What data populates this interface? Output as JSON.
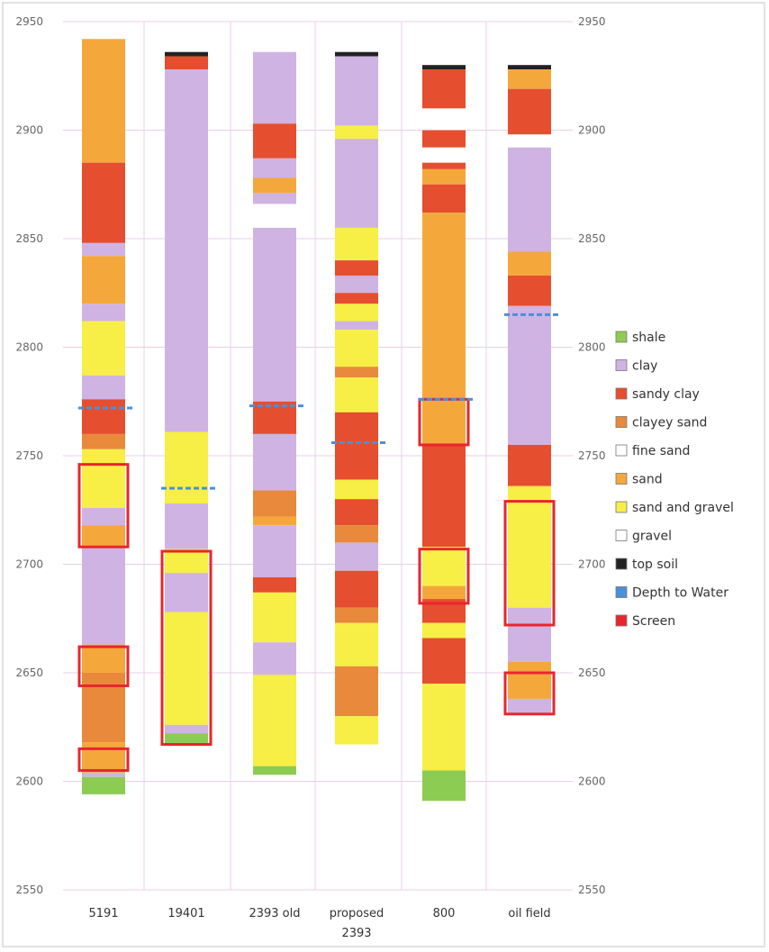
{
  "chart_data": {
    "type": "bar",
    "subtype": "stacked-column well log",
    "ylim": [
      2550,
      2950
    ],
    "yticks": [
      2550,
      2600,
      2650,
      2700,
      2750,
      2800,
      2850,
      2900,
      2950
    ],
    "grid": true,
    "legend_position": "right",
    "categories": [
      "5191",
      "19401",
      "2393 old",
      "proposed 2393",
      "800",
      "oil field"
    ],
    "legend": [
      {
        "name": "shale",
        "color": "#8dcc52"
      },
      {
        "name": "clay",
        "color": "#cfb3e3"
      },
      {
        "name": "sandy clay",
        "color": "#e54e2f"
      },
      {
        "name": "clayey sand",
        "color": "#e8893b"
      },
      {
        "name": "fine sand",
        "color": "#ffffff"
      },
      {
        "name": "sand",
        "color": "#f4a83c"
      },
      {
        "name": "sand and gravel",
        "color": "#f7ef45"
      },
      {
        "name": "gravel",
        "color": "#ffffff"
      },
      {
        "name": "top soil",
        "color": "#222222"
      },
      {
        "name": "Depth to Water",
        "color": "#4a90d9"
      },
      {
        "name": "Screen",
        "color": "#e8262c"
      }
    ],
    "wells": [
      {
        "name": "5191",
        "layers": [
          {
            "top": 2942,
            "bottom": 2885,
            "type": "sand"
          },
          {
            "top": 2885,
            "bottom": 2848,
            "type": "sandy clay"
          },
          {
            "top": 2848,
            "bottom": 2842,
            "type": "clay"
          },
          {
            "top": 2842,
            "bottom": 2820,
            "type": "sand"
          },
          {
            "top": 2820,
            "bottom": 2812,
            "type": "clay"
          },
          {
            "top": 2812,
            "bottom": 2787,
            "type": "sand and gravel"
          },
          {
            "top": 2787,
            "bottom": 2776,
            "type": "clay"
          },
          {
            "top": 2776,
            "bottom": 2760,
            "type": "sandy clay"
          },
          {
            "top": 2760,
            "bottom": 2753,
            "type": "clayey sand"
          },
          {
            "top": 2753,
            "bottom": 2726,
            "type": "sand and gravel"
          },
          {
            "top": 2726,
            "bottom": 2718,
            "type": "clay"
          },
          {
            "top": 2718,
            "bottom": 2708,
            "type": "sand"
          },
          {
            "top": 2708,
            "bottom": 2663,
            "type": "clay"
          },
          {
            "top": 2663,
            "bottom": 2650,
            "type": "sand"
          },
          {
            "top": 2650,
            "bottom": 2618,
            "type": "clayey sand"
          },
          {
            "top": 2618,
            "bottom": 2604,
            "type": "sand"
          },
          {
            "top": 2604,
            "bottom": 2602,
            "type": "clay"
          },
          {
            "top": 2602,
            "bottom": 2594,
            "type": "shale"
          }
        ],
        "water": 2772,
        "screens": [
          [
            2746,
            2708
          ],
          [
            2662,
            2644
          ],
          [
            2615,
            2605
          ]
        ]
      },
      {
        "name": "19401",
        "layers": [
          {
            "top": 2936,
            "bottom": 2934,
            "type": "top soil"
          },
          {
            "top": 2934,
            "bottom": 2928,
            "type": "sandy clay"
          },
          {
            "top": 2928,
            "bottom": 2761,
            "type": "clay"
          },
          {
            "top": 2761,
            "bottom": 2728,
            "type": "sand and gravel"
          },
          {
            "top": 2728,
            "bottom": 2707,
            "type": "clay"
          },
          {
            "top": 2707,
            "bottom": 2696,
            "type": "sand and gravel"
          },
          {
            "top": 2696,
            "bottom": 2678,
            "type": "clay"
          },
          {
            "top": 2678,
            "bottom": 2626,
            "type": "sand and gravel"
          },
          {
            "top": 2626,
            "bottom": 2622,
            "type": "clay"
          },
          {
            "top": 2622,
            "bottom": 2617,
            "type": "shale"
          }
        ],
        "water": 2735,
        "screens": [
          [
            2706,
            2617
          ]
        ]
      },
      {
        "name": "2393 old",
        "layers": [
          {
            "top": 2936,
            "bottom": 2903,
            "type": "clay"
          },
          {
            "top": 2903,
            "bottom": 2887,
            "type": "sandy clay"
          },
          {
            "top": 2887,
            "bottom": 2878,
            "type": "clay"
          },
          {
            "top": 2878,
            "bottom": 2871,
            "type": "sand"
          },
          {
            "top": 2871,
            "bottom": 2866,
            "type": "clay"
          },
          {
            "top": 2866,
            "bottom": 2855,
            "type": "fine sand"
          },
          {
            "top": 2855,
            "bottom": 2775,
            "type": "clay"
          },
          {
            "top": 2775,
            "bottom": 2760,
            "type": "sandy clay"
          },
          {
            "top": 2760,
            "bottom": 2734,
            "type": "clay"
          },
          {
            "top": 2734,
            "bottom": 2722,
            "type": "clayey sand"
          },
          {
            "top": 2722,
            "bottom": 2718,
            "type": "sand"
          },
          {
            "top": 2718,
            "bottom": 2694,
            "type": "clay"
          },
          {
            "top": 2694,
            "bottom": 2687,
            "type": "sandy clay"
          },
          {
            "top": 2687,
            "bottom": 2664,
            "type": "sand and gravel"
          },
          {
            "top": 2664,
            "bottom": 2649,
            "type": "clay"
          },
          {
            "top": 2649,
            "bottom": 2607,
            "type": "sand and gravel"
          },
          {
            "top": 2607,
            "bottom": 2603,
            "type": "shale"
          }
        ],
        "water": 2773,
        "screens": []
      },
      {
        "name": "proposed 2393",
        "layers": [
          {
            "top": 2936,
            "bottom": 2934,
            "type": "top soil"
          },
          {
            "top": 2934,
            "bottom": 2902,
            "type": "clay"
          },
          {
            "top": 2902,
            "bottom": 2896,
            "type": "sand and gravel"
          },
          {
            "top": 2896,
            "bottom": 2855,
            "type": "clay"
          },
          {
            "top": 2855,
            "bottom": 2840,
            "type": "sand and gravel"
          },
          {
            "top": 2840,
            "bottom": 2833,
            "type": "sandy clay"
          },
          {
            "top": 2833,
            "bottom": 2825,
            "type": "clay"
          },
          {
            "top": 2825,
            "bottom": 2820,
            "type": "sandy clay"
          },
          {
            "top": 2820,
            "bottom": 2812,
            "type": "sand and gravel"
          },
          {
            "top": 2812,
            "bottom": 2808,
            "type": "clay"
          },
          {
            "top": 2808,
            "bottom": 2791,
            "type": "sand and gravel"
          },
          {
            "top": 2791,
            "bottom": 2786,
            "type": "clayey sand"
          },
          {
            "top": 2786,
            "bottom": 2770,
            "type": "sand and gravel"
          },
          {
            "top": 2770,
            "bottom": 2739,
            "type": "sandy clay"
          },
          {
            "top": 2739,
            "bottom": 2730,
            "type": "sand and gravel"
          },
          {
            "top": 2730,
            "bottom": 2718,
            "type": "sandy clay"
          },
          {
            "top": 2718,
            "bottom": 2710,
            "type": "clayey sand"
          },
          {
            "top": 2710,
            "bottom": 2697,
            "type": "clay"
          },
          {
            "top": 2697,
            "bottom": 2680,
            "type": "sandy clay"
          },
          {
            "top": 2680,
            "bottom": 2673,
            "type": "clayey sand"
          },
          {
            "top": 2673,
            "bottom": 2653,
            "type": "sand and gravel"
          },
          {
            "top": 2653,
            "bottom": 2630,
            "type": "clayey sand"
          },
          {
            "top": 2630,
            "bottom": 2617,
            "type": "sand and gravel"
          }
        ],
        "water": 2756,
        "screens": []
      },
      {
        "name": "800",
        "layers": [
          {
            "top": 2930,
            "bottom": 2928,
            "type": "top soil"
          },
          {
            "top": 2928,
            "bottom": 2910,
            "type": "sandy clay"
          },
          {
            "top": 2910,
            "bottom": 2900,
            "type": "fine sand"
          },
          {
            "top": 2900,
            "bottom": 2892,
            "type": "sandy clay"
          },
          {
            "top": 2892,
            "bottom": 2885,
            "type": "fine sand"
          },
          {
            "top": 2885,
            "bottom": 2882,
            "type": "sandy clay"
          },
          {
            "top": 2882,
            "bottom": 2875,
            "type": "sand"
          },
          {
            "top": 2875,
            "bottom": 2862,
            "type": "sandy clay"
          },
          {
            "top": 2862,
            "bottom": 2755,
            "type": "sand"
          },
          {
            "top": 2755,
            "bottom": 2708,
            "type": "sandy clay"
          },
          {
            "top": 2708,
            "bottom": 2690,
            "type": "sand and gravel"
          },
          {
            "top": 2690,
            "bottom": 2684,
            "type": "sand"
          },
          {
            "top": 2684,
            "bottom": 2673,
            "type": "sandy clay"
          },
          {
            "top": 2673,
            "bottom": 2666,
            "type": "sand and gravel"
          },
          {
            "top": 2666,
            "bottom": 2645,
            "type": "sandy clay"
          },
          {
            "top": 2645,
            "bottom": 2605,
            "type": "sand and gravel"
          },
          {
            "top": 2605,
            "bottom": 2591,
            "type": "shale"
          }
        ],
        "water": 2776,
        "screens": [
          [
            2776,
            2755
          ],
          [
            2707,
            2682
          ]
        ]
      },
      {
        "name": "oil field",
        "layers": [
          {
            "top": 2930,
            "bottom": 2928,
            "type": "top soil"
          },
          {
            "top": 2928,
            "bottom": 2919,
            "type": "sand"
          },
          {
            "top": 2919,
            "bottom": 2898,
            "type": "sandy clay"
          },
          {
            "top": 2898,
            "bottom": 2892,
            "type": "fine sand"
          },
          {
            "top": 2892,
            "bottom": 2844,
            "type": "clay"
          },
          {
            "top": 2844,
            "bottom": 2833,
            "type": "sand"
          },
          {
            "top": 2833,
            "bottom": 2819,
            "type": "sandy clay"
          },
          {
            "top": 2819,
            "bottom": 2755,
            "type": "clay"
          },
          {
            "top": 2755,
            "bottom": 2736,
            "type": "sandy clay"
          },
          {
            "top": 2736,
            "bottom": 2680,
            "type": "sand and gravel"
          },
          {
            "top": 2680,
            "bottom": 2655,
            "type": "clay"
          },
          {
            "top": 2655,
            "bottom": 2638,
            "type": "sand"
          },
          {
            "top": 2638,
            "bottom": 2631,
            "type": "clay"
          }
        ],
        "water": 2815,
        "screens": [
          [
            2729,
            2672
          ],
          [
            2650,
            2631
          ]
        ]
      }
    ]
  },
  "labels": {
    "cat0": "5191",
    "cat1": "19401",
    "cat2": "2393 old",
    "cat3a": "proposed",
    "cat3b": "2393",
    "cat4": "800",
    "cat5": "oil field"
  }
}
